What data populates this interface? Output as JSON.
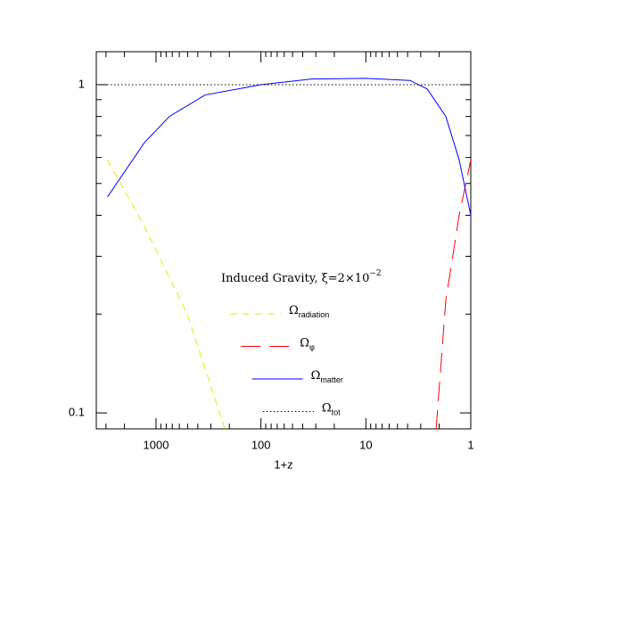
{
  "chart_data": {
    "type": "line",
    "xlabel": "1+z",
    "annotation": {
      "text": "Induced Gravity, ξ=2×10",
      "superscript": "−2"
    },
    "xscale": "log",
    "yscale": "log",
    "xreversed": true,
    "xlim": [
      3710,
      1
    ],
    "ylim": [
      0.0894,
      1.26
    ],
    "xticks": [
      1000,
      100,
      10,
      1
    ],
    "yticks": [
      0.1,
      1
    ],
    "xminorticks": [
      3000,
      2000,
      900,
      800,
      700,
      600,
      500,
      400,
      300,
      200,
      90,
      80,
      70,
      60,
      50,
      40,
      30,
      20,
      9,
      8,
      7,
      6,
      5,
      4,
      3,
      2
    ],
    "yminorticks": [
      0.2,
      0.3,
      0.4,
      0.5,
      0.6,
      0.7,
      0.8,
      0.9
    ],
    "series": [
      {
        "name": "Ω",
        "subscript": "radiation",
        "color": "#e8e800",
        "dash": "8 6",
        "x": [
          2900,
          1290,
          505,
          220
        ],
        "values": [
          0.59,
          0.37,
          0.2,
          0.089
        ]
      },
      {
        "name": "Ω",
        "subscript": "φ",
        "color": "#ff0000",
        "dash": "22 10",
        "x": [
          2.14,
          1.73,
          1.29,
          1
        ],
        "values": [
          0.089,
          0.22,
          0.4,
          0.59
        ]
      },
      {
        "name": "Ω",
        "subscript": "matter",
        "color": "#0000ff",
        "dash": "none",
        "x": [
          2900,
          1290,
          746,
          341,
          100,
          33,
          10,
          3.8,
          2.6,
          1.73,
          1.29,
          1
        ],
        "values": [
          0.455,
          0.666,
          0.8,
          0.93,
          1.0,
          1.04,
          1.045,
          1.03,
          0.97,
          0.8,
          0.59,
          0.4
        ]
      },
      {
        "name": "Ω",
        "subscript": "tot",
        "color": "#000000",
        "dash": "1.5 2.5",
        "x": [
          3710,
          1
        ],
        "values": [
          1,
          1
        ]
      }
    ]
  }
}
